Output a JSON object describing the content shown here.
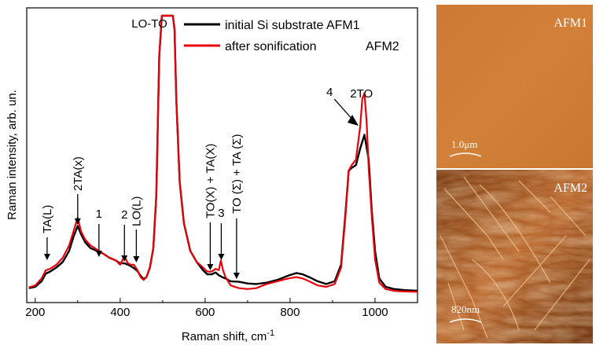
{
  "chart_data": {
    "type": "line",
    "xlabel": "Raman shift, cm",
    "xlabel_sup": "-1",
    "ylabel": "Raman intensity, arb. un.",
    "xlim": [
      180,
      1100
    ],
    "ylim": [
      0,
      100
    ],
    "xticks": [
      200,
      400,
      600,
      800,
      1000
    ],
    "legend_placement": "top-right",
    "series": [
      {
        "name": "initial Si substrate AFM1",
        "color": "#000000",
        "x": [
          185,
          200,
          215,
          225,
          235,
          250,
          265,
          280,
          290,
          300,
          308,
          318,
          330,
          345,
          360,
          375,
          390,
          400,
          410,
          418,
          425,
          432,
          440,
          448,
          455,
          462,
          470,
          478,
          485,
          492,
          498,
          505,
          510,
          514,
          518,
          521,
          524,
          528,
          532,
          540,
          550,
          565,
          580,
          595,
          605,
          615,
          625,
          632,
          640,
          648,
          660,
          680,
          700,
          720,
          745,
          770,
          795,
          815,
          830,
          845,
          865,
          885,
          905,
          920,
          930,
          938,
          945,
          955,
          965,
          975,
          985,
          992,
          1000,
          1010,
          1025,
          1045,
          1070,
          1100
        ],
        "y": [
          1.5,
          2,
          4,
          6.8,
          7.5,
          9,
          11,
          15,
          20,
          24,
          21,
          18,
          16,
          15,
          14,
          12.5,
          11.5,
          10.5,
          10.5,
          10,
          9.5,
          8.8,
          7.8,
          6,
          4.8,
          5.5,
          9,
          16,
          35,
          85,
          100,
          100,
          100,
          100,
          100,
          100,
          100,
          95,
          70,
          40,
          25,
          15,
          11,
          8,
          6.5,
          6.5,
          7.2,
          6.2,
          5.5,
          5,
          4,
          3.8,
          3.2,
          3,
          3.5,
          4.5,
          6,
          7,
          6.5,
          5.5,
          4,
          3,
          4,
          10,
          28,
          44,
          45,
          46,
          52,
          57,
          48,
          30,
          15,
          5,
          2,
          1.2,
          0.8,
          0.6
        ]
      },
      {
        "name": "after sonification",
        "color": "#e8000b",
        "x": [
          185,
          200,
          215,
          225,
          235,
          250,
          265,
          280,
          290,
          300,
          308,
          318,
          330,
          345,
          360,
          375,
          390,
          400,
          410,
          418,
          425,
          432,
          440,
          448,
          455,
          462,
          470,
          478,
          485,
          492,
          498,
          505,
          510,
          514,
          518,
          521,
          524,
          528,
          532,
          540,
          550,
          565,
          580,
          595,
          605,
          615,
          625,
          632,
          637,
          642,
          648,
          660,
          680,
          700,
          720,
          745,
          770,
          795,
          815,
          830,
          845,
          865,
          885,
          905,
          920,
          930,
          938,
          945,
          955,
          965,
          970,
          975,
          980,
          985,
          992,
          1000,
          1010,
          1025,
          1045,
          1070,
          1100
        ],
        "y": [
          1.8,
          2.5,
          5,
          8,
          8.5,
          10,
          12.5,
          17,
          22,
          27,
          22,
          19,
          17,
          15.5,
          14,
          12.5,
          11.5,
          10,
          13,
          10.5,
          10,
          10,
          8.2,
          5.5,
          4.5,
          5.5,
          9,
          16,
          35,
          85,
          100,
          100,
          100,
          100,
          100,
          100,
          100,
          95,
          70,
          40,
          25,
          15,
          11,
          9,
          7.5,
          7.5,
          8.5,
          8,
          11.5,
          8,
          5.5,
          2.5,
          1.5,
          1.2,
          1.5,
          3,
          4,
          5,
          5.5,
          5,
          4,
          2.5,
          2,
          3,
          9,
          27,
          44,
          46,
          48,
          60,
          70,
          72,
          62,
          45,
          28,
          12,
          3.5,
          1.2,
          0.5,
          0.3,
          0.2
        ]
      }
    ],
    "legend_extra": "AFM2",
    "annotations": [
      {
        "text": "TA(L)",
        "x": 228,
        "rotated": true
      },
      {
        "text": "2TA(x)",
        "x": 300,
        "rotated": true
      },
      {
        "text": "1",
        "x": 350,
        "rotated": false
      },
      {
        "text": "2",
        "x": 410,
        "rotated": false
      },
      {
        "text": "LO(L)",
        "x": 438,
        "rotated": true
      },
      {
        "text": "LO-TO",
        "x": 480,
        "rotated": false
      },
      {
        "text": "TO(X) + TA(X)",
        "x": 612,
        "rotated": true
      },
      {
        "text": "3",
        "x": 638,
        "rotated": false
      },
      {
        "text": "TO (Σ) + TA (Σ)",
        "x": 674,
        "rotated": true
      },
      {
        "text": "4",
        "x": 893,
        "rotated": false
      },
      {
        "text": "2TO",
        "x": 968,
        "rotated": false
      }
    ]
  },
  "afm_panels": [
    {
      "label": "AFM1",
      "scale_bar": "1.0μm",
      "texture": "smooth"
    },
    {
      "label": "AFM2",
      "scale_bar": "820nm",
      "texture": "rough"
    }
  ]
}
